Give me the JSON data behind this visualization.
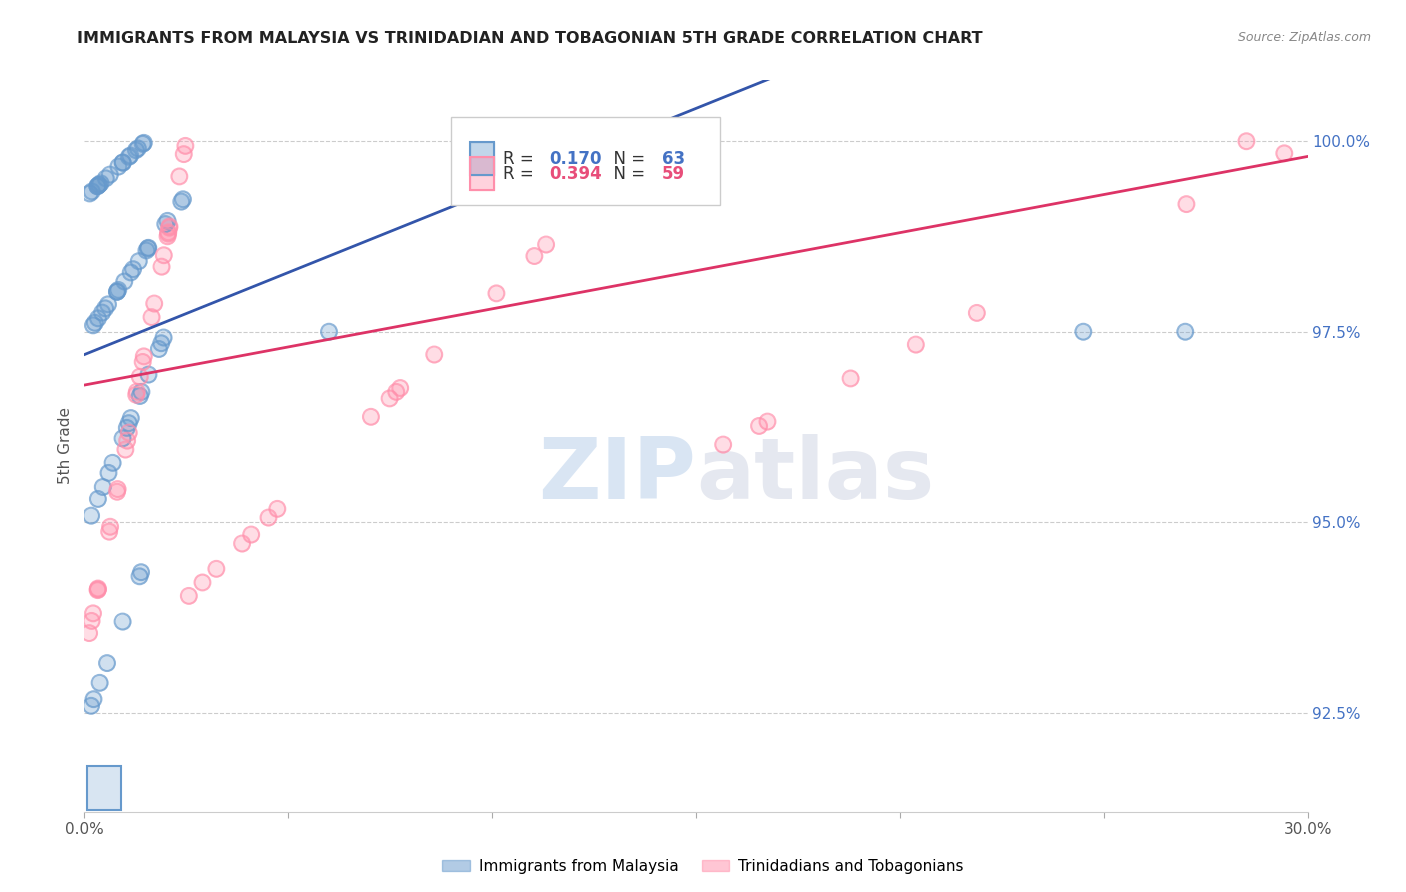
{
  "title": "IMMIGRANTS FROM MALAYSIA VS TRINIDADIAN AND TOBAGONIAN 5TH GRADE CORRELATION CHART",
  "source": "Source: ZipAtlas.com",
  "ylabel": "5th Grade",
  "xmin": 0.0,
  "xmax": 0.3,
  "ymin": 91.2,
  "ymax": 100.8,
  "yticks": [
    92.5,
    95.0,
    97.5,
    100.0
  ],
  "xticks": [
    0.0,
    0.05,
    0.1,
    0.15,
    0.2,
    0.25,
    0.3
  ],
  "xtick_labels": [
    "0.0%",
    "",
    "",
    "",
    "",
    "",
    "30.0%"
  ],
  "ytick_labels": [
    "92.5%",
    "95.0%",
    "97.5%",
    "100.0%"
  ],
  "blue_color": "#6699CC",
  "pink_color": "#FF8FAB",
  "blue_line_color": "#3355AA",
  "pink_line_color": "#DD3366",
  "blue_R": 0.17,
  "blue_N": 63,
  "pink_R": 0.394,
  "pink_N": 59,
  "watermark_zip_color": "#C8D8F0",
  "watermark_atlas_color": "#D0D8E8",
  "background_color": "#FFFFFF",
  "grid_color": "#CCCCCC",
  "title_color": "#222222",
  "axis_label_color": "#555555",
  "right_tick_color": "#4472C4",
  "legend_R_color_blue": "#4472C4",
  "legend_R_color_pink": "#E84E7A",
  "legend_N_color_blue": "#4472C4",
  "legend_N_color_pink": "#E84E7A",
  "legend_label_color": "#333333",
  "source_color": "#888888"
}
